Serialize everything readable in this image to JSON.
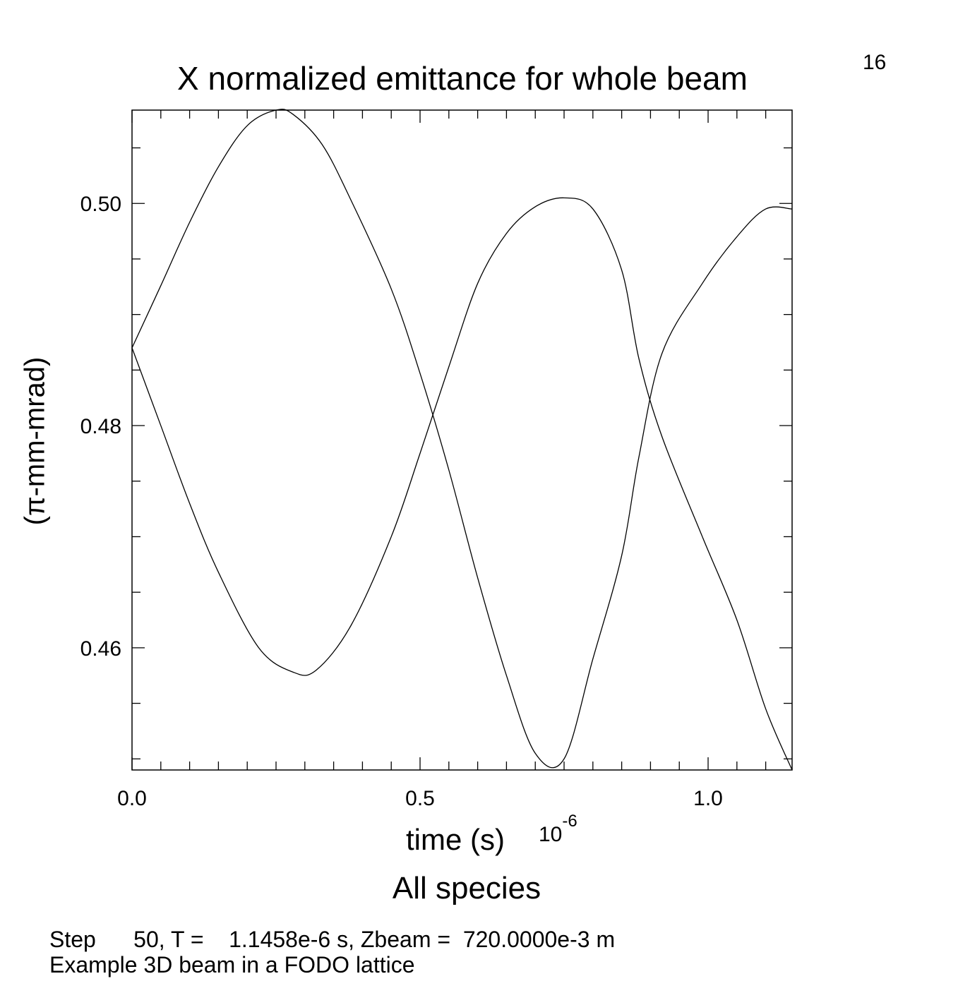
{
  "page_number": "16",
  "footer": {
    "line1": "Step      50, T =    1.1458e-6 s, Zbeam =  720.0000e-3 m",
    "line2": "Example 3D beam in a FODO lattice"
  },
  "chart_data": {
    "type": "line",
    "title": "X normalized emittance for whole beam",
    "subtitle": "All species",
    "xlabel": "time (s)",
    "x_multiplier_base": "10",
    "x_multiplier_exp": "-6",
    "ylabel": "(π-mm-mrad)",
    "xlim": [
      0.0,
      1.1458
    ],
    "ylim": [
      0.449,
      0.5084
    ],
    "x_ticks": [
      "0.0",
      "0.5",
      "1.0"
    ],
    "y_ticks": [
      "0.46",
      "0.48",
      "0.50"
    ],
    "grid": false,
    "series": [
      {
        "x": [
          0.0,
          0.05,
          0.1,
          0.15,
          0.2,
          0.25,
          0.28,
          0.33,
          0.38,
          0.45,
          0.5,
          0.55,
          0.6,
          0.65,
          0.7,
          0.75,
          0.8,
          0.85,
          0.88,
          0.92,
          0.99,
          1.05,
          1.1,
          1.1458
        ],
        "y": [
          0.487,
          0.4926,
          0.4983,
          0.5033,
          0.507,
          0.5084,
          0.508,
          0.5053,
          0.5003,
          0.4923,
          0.4847,
          0.476,
          0.4663,
          0.4575,
          0.4505,
          0.45,
          0.459,
          0.4683,
          0.4772,
          0.4865,
          0.4928,
          0.497,
          0.4995,
          0.4995
        ]
      },
      {
        "x": [
          0.0,
          0.05,
          0.1,
          0.15,
          0.22,
          0.28,
          0.32,
          0.38,
          0.45,
          0.5,
          0.55,
          0.6,
          0.65,
          0.7,
          0.75,
          0.8,
          0.85,
          0.88,
          0.92,
          0.99,
          1.05,
          1.1,
          1.1458
        ],
        "y": [
          0.487,
          0.48,
          0.473,
          0.4668,
          0.46,
          0.4578,
          0.458,
          0.462,
          0.47,
          0.4775,
          0.4853,
          0.4928,
          0.4973,
          0.4997,
          0.5005,
          0.4995,
          0.494,
          0.486,
          0.479,
          0.47,
          0.4625,
          0.4545,
          0.449
        ]
      }
    ]
  }
}
